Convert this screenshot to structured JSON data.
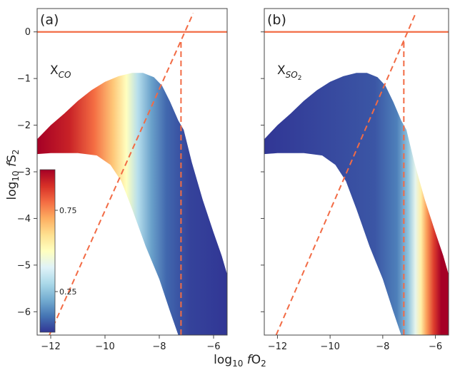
{
  "chart_data": {
    "type": "heatmap",
    "shared": {
      "xlabel_main": "log",
      "xlabel_sub": "10",
      "xlabel_var": "f",
      "xlabel_rest": "O",
      "xlabel_subscript": "2",
      "ylabel_main": "log",
      "ylabel_sub": "10",
      "ylabel_var": "f",
      "ylabel_rest": "S",
      "ylabel_subscript": "2",
      "xlim": [
        -12.5,
        -5.5
      ],
      "ylim": [
        -6.5,
        0.5
      ],
      "x_ticks": [
        -12,
        -10,
        -8,
        -6
      ],
      "x_tick_labels": [
        "−12",
        "−10",
        "−8",
        "−6"
      ],
      "y_ticks": [
        0,
        -1,
        -2,
        -3,
        -4,
        -5,
        -6
      ],
      "y_tick_labels": [
        "0",
        "−1",
        "−2",
        "−3",
        "−4",
        "−5",
        "−6"
      ],
      "grid": false,
      "colormap": "RdYlBu_r",
      "line_color": "#f26b45"
    },
    "horizontal_line_y": 0,
    "dashed_diagonal": [
      [
        -12.05,
        -6.5
      ],
      [
        -6.75,
        0.4
      ]
    ],
    "vertical_dashed": {
      "x": -7.2,
      "y_from": -6.5,
      "y_to": -0.15
    },
    "region": {
      "upper_edge": [
        [
          -12.5,
          -2.3
        ],
        [
          -12,
          -2.0
        ],
        [
          -11.5,
          -1.75
        ],
        [
          -11,
          -1.48
        ],
        [
          -10.5,
          -1.25
        ],
        [
          -10,
          -1.07
        ],
        [
          -9.5,
          -0.95
        ],
        [
          -9,
          -0.88
        ],
        [
          -8.6,
          -0.88
        ],
        [
          -8.2,
          -0.97
        ],
        [
          -7.9,
          -1.15
        ],
        [
          -7.6,
          -1.5
        ],
        [
          -7.3,
          -1.9
        ],
        [
          -7.1,
          -2.1
        ]
      ],
      "right_edge": [
        [
          -7.1,
          -2.1
        ],
        [
          -6.8,
          -2.8
        ],
        [
          -6.4,
          -3.6
        ],
        [
          -6.0,
          -4.3
        ],
        [
          -5.7,
          -4.8
        ],
        [
          -5.5,
          -5.2
        ],
        [
          -5.5,
          -6.5
        ]
      ],
      "lower_edge": [
        [
          -5.5,
          -6.5
        ],
        [
          -7.3,
          -6.5
        ],
        [
          -7.6,
          -6.0
        ],
        [
          -8.0,
          -5.3
        ],
        [
          -8.5,
          -4.6
        ],
        [
          -9.0,
          -3.8
        ],
        [
          -9.4,
          -3.2
        ],
        [
          -9.8,
          -2.85
        ],
        [
          -10.3,
          -2.65
        ],
        [
          -11,
          -2.6
        ],
        [
          -12,
          -2.6
        ],
        [
          -12.5,
          -2.62
        ]
      ]
    },
    "panels": [
      {
        "tag": "(a)",
        "label_main": "X",
        "label_sub": "CO",
        "color_field": "co",
        "colorbar": {
          "ticks": [
            0.75,
            0.25
          ],
          "tick_labels": [
            "0.75",
            "0.25"
          ],
          "range": [
            0,
            1
          ]
        }
      },
      {
        "tag": "(b)",
        "label_main": "X",
        "label_sub": "SO",
        "label_subsub": "2",
        "color_field": "so2"
      }
    ]
  }
}
